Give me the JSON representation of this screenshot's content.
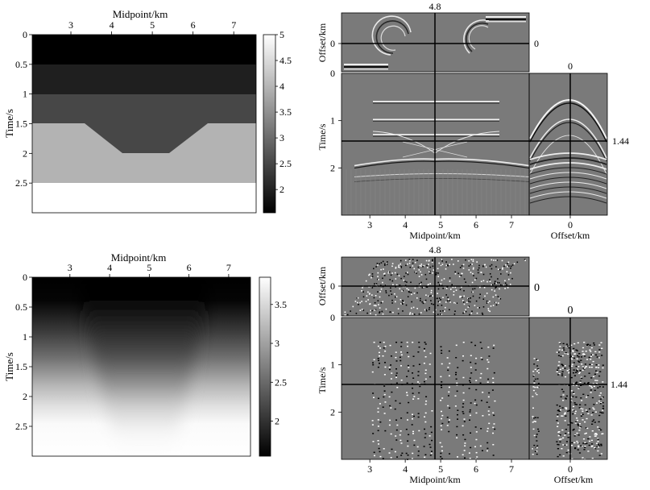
{
  "chart_data": [
    {
      "type": "heatmap",
      "panel": "top-left",
      "description_of_content": "layered velocity model with trapezoidal depression",
      "xlabel": "Midpoint/km",
      "ylabel": "Time/s",
      "x_ticks": [
        "3",
        "4",
        "5",
        "6",
        "7"
      ],
      "y_ticks": [
        "0",
        "0.5",
        "1",
        "1.5",
        "2",
        "2.5"
      ],
      "xlim": [
        2.05,
        7.55
      ],
      "ylim": [
        0,
        3.0
      ],
      "colorbar": {
        "ticks": [
          "2",
          "2.5",
          "3",
          "3.5",
          "4",
          "4.5",
          "5"
        ],
        "range": [
          1.55,
          5.0
        ]
      },
      "colormap": "gray",
      "layers": [
        {
          "t_top": 0.0,
          "t_bottom": 0.5,
          "value": 1.5
        },
        {
          "t_top": 0.5,
          "t_bottom": 1.0,
          "value": 2.0
        },
        {
          "t_top": 1.0,
          "t_bottom": 1.5,
          "value": 2.5
        },
        {
          "t_top": 1.5,
          "t_bottom": 2.5,
          "value": 4.0,
          "depression": {
            "x": [
              3.0,
              4.25,
              5.4,
              6.35
            ],
            "t_bottom": 2.0
          }
        },
        {
          "t_top": 2.5,
          "t_bottom": 3.0,
          "value": 5.0
        }
      ]
    },
    {
      "type": "heatmap",
      "panel": "bottom-left",
      "description_of_content": "smoothed velocity model",
      "xlabel": "Midpoint/km",
      "ylabel": "Time/s",
      "x_ticks": [
        "3",
        "4",
        "5",
        "6",
        "7"
      ],
      "y_ticks": [
        "0",
        "0.5",
        "1",
        "1.5",
        "2",
        "2.5"
      ],
      "xlim": [
        2.05,
        7.55
      ],
      "ylim": [
        0,
        3.0
      ],
      "colorbar": {
        "ticks": [
          "2",
          "2.5",
          "3",
          "3.5"
        ],
        "range": [
          1.55,
          3.85
        ]
      },
      "colormap": "gray"
    },
    {
      "type": "heatmap",
      "panel": "top-right",
      "description_of_content": "3-D seismic cube slices",
      "xlabel": "Midpoint/km",
      "ylabel": "Time/s",
      "offset_label": "Offset/km",
      "x_ticks": [
        "3",
        "4",
        "5",
        "6",
        "7"
      ],
      "y_ticks": [
        "1",
        "2"
      ],
      "top_ticks": [
        "0"
      ],
      "side_ticks": [
        "0"
      ],
      "annotations": {
        "midpoint_slice": "4.8",
        "time_slice": "1.44",
        "offset_slice_side": "0",
        "offset_slice_top": "0"
      },
      "xlim": [
        2.2,
        7.5
      ],
      "ylim": [
        0,
        3.0
      ],
      "reflectors_t": [
        0.6,
        0.98,
        1.3,
        1.85
      ]
    },
    {
      "type": "heatmap",
      "panel": "bottom-right",
      "description_of_content": "3-D seismic cube slices (noisy)",
      "xlabel": "Midpoint/km",
      "ylabel": "Time/s",
      "offset_label": "Offset/km",
      "x_ticks": [
        "3",
        "4",
        "5",
        "6",
        "7"
      ],
      "y_ticks": [
        "1",
        "2"
      ],
      "top_ticks": [
        "0"
      ],
      "side_ticks": [
        "0"
      ],
      "annotations": {
        "midpoint_slice": "4.8",
        "time_slice": "1.44",
        "offset_slice_side": "0",
        "offset_slice_top": "0"
      },
      "xlim": [
        2.2,
        7.5
      ],
      "ylim": [
        0,
        3.0
      ]
    }
  ]
}
